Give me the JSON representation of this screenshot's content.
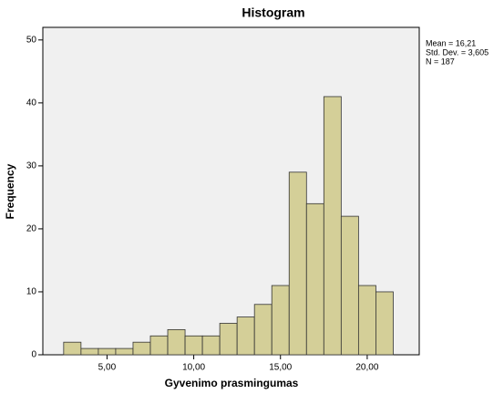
{
  "chart_data": {
    "type": "histogram",
    "title": "Histogram",
    "xlabel": "Gyvenimo prasmingumas",
    "ylabel": "Frequency",
    "bins": [
      2.5,
      3.5,
      4.5,
      5.5,
      6.5,
      7.5,
      8.5,
      9.5,
      10.5,
      11.5,
      12.5,
      13.5,
      14.5,
      15.5,
      16.5,
      17.5,
      18.5,
      19.5,
      20.5,
      21.5
    ],
    "values": [
      2,
      1,
      1,
      1,
      2,
      3,
      4,
      3,
      3,
      5,
      6,
      8,
      11,
      29,
      24,
      41,
      22,
      11,
      10
    ],
    "color": "#d4cf98",
    "xlim": [
      1.3,
      23
    ],
    "xticks": [
      {
        "value": 5,
        "label": "5,00"
      },
      {
        "value": 10,
        "label": "10,00"
      },
      {
        "value": 15,
        "label": "15,00"
      },
      {
        "value": 20,
        "label": "20,00"
      }
    ],
    "ylim": [
      0,
      52
    ],
    "yticks": [
      0,
      10,
      20,
      30,
      40,
      50
    ],
    "annotations": [
      "Mean = 16,21",
      "Std. Dev. = 3,605",
      "N = 187"
    ]
  }
}
